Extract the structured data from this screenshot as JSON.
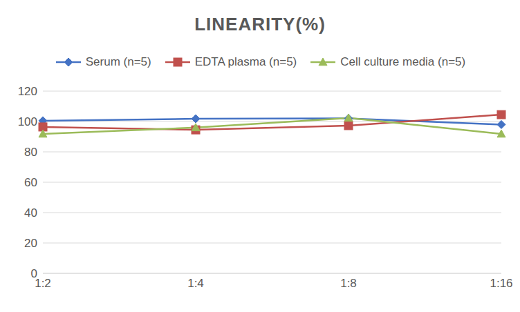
{
  "chart_data": {
    "type": "line",
    "title": "LINEARITY(%)",
    "categories": [
      "1:2",
      "1:4",
      "1:8",
      "1:16"
    ],
    "series": [
      {
        "name": "Serum (n=5)",
        "color": "#4472c4",
        "marker": "diamond",
        "values": [
          100.5,
          101.8,
          102,
          98
        ]
      },
      {
        "name": "EDTA plasma (n=5)",
        "color": "#c0504d",
        "marker": "square",
        "values": [
          96.4,
          94.5,
          97.3,
          104.5
        ]
      },
      {
        "name": "Cell culture media (n=5)",
        "color": "#9bbb59",
        "marker": "triangle",
        "values": [
          91.8,
          96,
          102.3,
          91.8
        ]
      }
    ],
    "ylim": [
      0,
      120
    ],
    "yticks": [
      0,
      20,
      40,
      60,
      80,
      100,
      120
    ],
    "grid": true,
    "legend": "top"
  }
}
